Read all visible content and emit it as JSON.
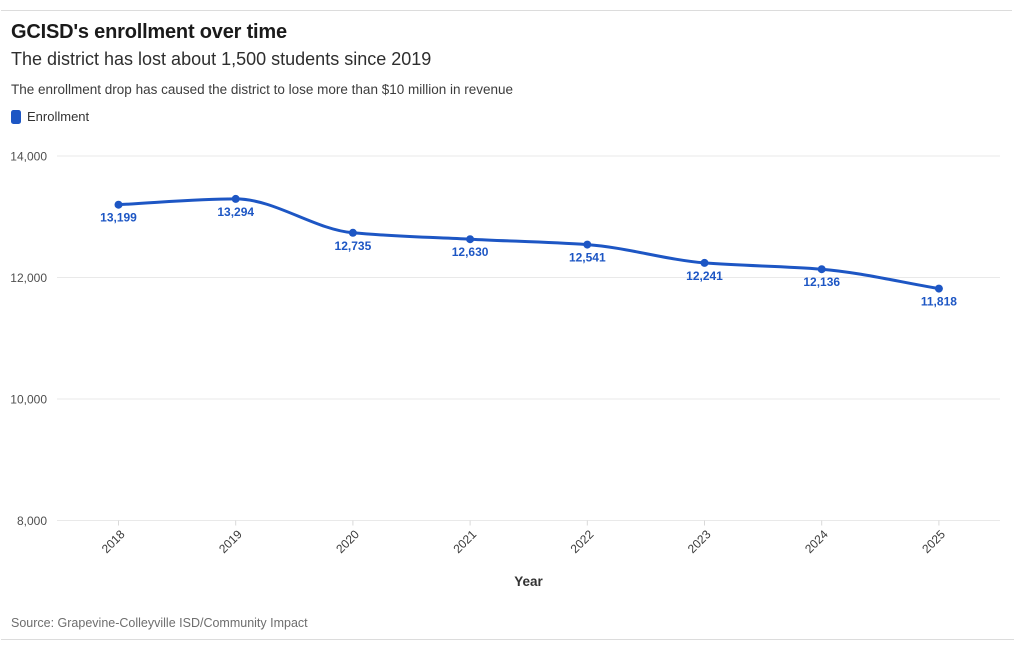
{
  "header": {
    "title": "GCISD's enrollment over time",
    "subtitle": "The district has lost about 1,500 students since 2019",
    "description": "The enrollment drop has caused the district to lose more than $10 million in revenue"
  },
  "legend": {
    "label": "Enrollment",
    "color": "#1d56c4"
  },
  "chart_data": {
    "type": "line",
    "title": "GCISD's enrollment over time",
    "categories": [
      "2018",
      "2019",
      "2020",
      "2021",
      "2022",
      "2023",
      "2024",
      "2025"
    ],
    "series": [
      {
        "name": "Enrollment",
        "color": "#1d56c4",
        "values": [
          13199,
          13294,
          12735,
          12630,
          12541,
          12241,
          12136,
          11818
        ]
      }
    ],
    "point_labels": [
      "13,199",
      "13,294",
      "12,735",
      "12,630",
      "12,541",
      "12,241",
      "12,136",
      "11,818"
    ],
    "xlabel": "Year",
    "ylabel": "",
    "ylim": [
      8000,
      14000
    ],
    "yticks": [
      14000,
      12000,
      10000,
      8000
    ],
    "ytick_labels": [
      "14,000",
      "12,000",
      "10,000",
      "8,000"
    ],
    "grid": true,
    "legend_position": "top-left",
    "line_smoothing": "monotone",
    "colors": {
      "gridline": "#e9e9e9",
      "axis_tick": "#d9d9d9",
      "y_tick_text": "#4f4f4f",
      "x_tick_text": "#3a3a3a",
      "axis_title_text": "#333333"
    }
  },
  "footer": {
    "source": "Source: Grapevine-Colleyville ISD/Community Impact"
  }
}
